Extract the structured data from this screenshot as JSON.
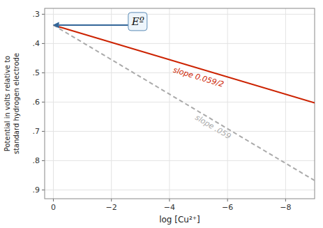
{
  "chart_data": {
    "type": "line",
    "xlabel": "log [Cu²⁺]",
    "ylabel": "Potential in volts relative to\nstandard hydrogen electrode",
    "x": [
      0,
      -9
    ],
    "series": [
      {
        "color": "#cc2200",
        "line_style": "solid",
        "values": [
          0.337,
          0.6025
        ]
      },
      {
        "color": "#aaaaaa",
        "line_style": "dashed",
        "values": [
          0.337,
          0.868
        ]
      }
    ],
    "xlim": [
      0.3,
      -9.0
    ],
    "ylim": [
      0.93,
      0.28
    ],
    "xticks": [
      0,
      {
        "value": -2,
        "label": "−2"
      },
      {
        "value": -4,
        "label": "−4"
      },
      {
        "value": -6,
        "label": "−6"
      },
      {
        "value": -8,
        "label": "−8"
      }
    ],
    "yticks": [
      {
        "value": 0.3,
        "label": ".3"
      },
      {
        "value": 0.4,
        "label": ".4"
      },
      {
        "value": 0.5,
        "label": ".5"
      },
      {
        "value": 0.6,
        "label": ".6"
      },
      {
        "value": 0.7,
        "label": ".7"
      },
      {
        "value": 0.8,
        "label": ".8"
      },
      {
        "value": 0.9,
        "label": ".9"
      }
    ],
    "annotations": [
      {
        "text": "slope 0.059/2",
        "x": -5.0,
        "y": 0.515,
        "color": "#cc2200"
      },
      {
        "text": "slope .059",
        "x": -5.5,
        "y": 0.685,
        "color": "#aaaaaa"
      },
      {
        "text": "Eº",
        "x": -2.7,
        "y": 0.325,
        "xy": [
          0.02,
          0.337
        ]
      }
    ],
    "grid": true
  }
}
